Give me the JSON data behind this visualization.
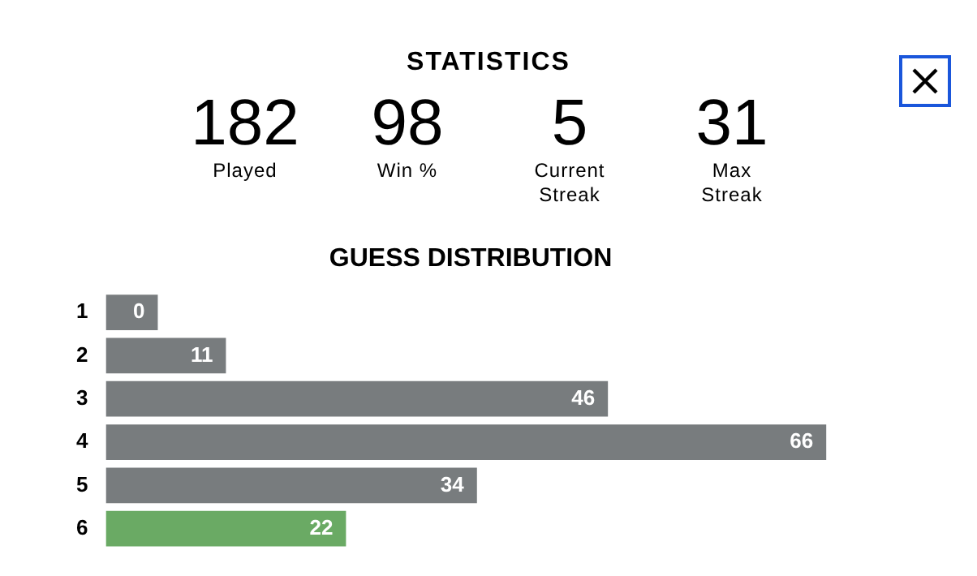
{
  "chart_data": [
    {
      "type": "other",
      "title": "STATISTICS",
      "categories": [
        "Played",
        "Win %",
        "Current Streak",
        "Max Streak"
      ],
      "values": [
        182,
        98,
        5,
        31
      ],
      "data_labels": true
    },
    {
      "type": "bar",
      "title": "GUESS DISTRIBUTION",
      "orientation": "horizontal",
      "categories": [
        "1",
        "2",
        "3",
        "4",
        "5",
        "6"
      ],
      "values": [
        0,
        11,
        46,
        66,
        34,
        22
      ],
      "colors": [
        "#787c7e",
        "#787c7e",
        "#787c7e",
        "#787c7e",
        "#787c7e",
        "#6aaa64"
      ],
      "data_labels": true,
      "tick_labels": "y"
    }
  ]
}
